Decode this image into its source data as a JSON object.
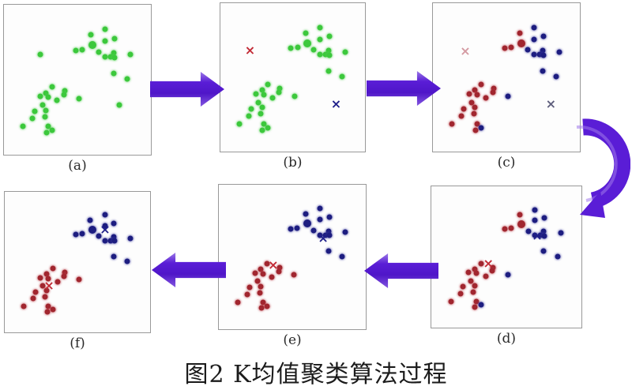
{
  "figure": {
    "caption": "图2 K均值聚类算法过程"
  },
  "colors": {
    "green_dot": "#3cc83c",
    "red_dot": "#a1262f",
    "blue_dot": "#1d1d80",
    "red_x": "#c22a35",
    "blue_x": "#1f1f8a",
    "red_x_faded": "#d49aa2",
    "blue_x_faded": "#5f5f7d",
    "arrow": "#5a1dd6",
    "panel_border": "#999999"
  },
  "halos": {
    "green_dot": "rgba(80,210,80,0.5)",
    "red_dot": "rgba(190,60,70,0.5)",
    "blue_dot": "rgba(60,60,160,0.5)"
  },
  "icons": {
    "centroid_marker": "×",
    "flow_arrow_right": "right-arrow",
    "flow_arrow_left": "left-arrow",
    "flow_arrow_curved": "curved-arrow-down"
  },
  "chart_data": {
    "type": "scatter",
    "points": [
      [
        69.0,
        16.5
      ],
      [
        58.9,
        20.0
      ],
      [
        75.2,
        22.6
      ],
      [
        69.0,
        24.3
      ],
      [
        60.1,
        26.9
      ],
      [
        48.9,
        30.4
      ],
      [
        53.4,
        29.8
      ],
      [
        64.6,
        31.6
      ],
      [
        74.8,
        32.1
      ],
      [
        69.0,
        34.7
      ],
      [
        72.6,
        34.7
      ],
      [
        75.5,
        35.1
      ],
      [
        86.2,
        33.0
      ],
      [
        24.7,
        33.0
      ],
      [
        74.8,
        46.0
      ],
      [
        84.0,
        49.5
      ],
      [
        33.0,
        54.7
      ],
      [
        28.7,
        58.7
      ],
      [
        41.2,
        57.3
      ],
      [
        24.7,
        61.1
      ],
      [
        30.0,
        61.6
      ],
      [
        40.6,
        59.9
      ],
      [
        36.2,
        63.9
      ],
      [
        26.1,
        66.8
      ],
      [
        51.3,
        62.5
      ],
      [
        21.1,
        71.2
      ],
      [
        28.7,
        70.3
      ],
      [
        78.7,
        66.8
      ],
      [
        19.4,
        76.0
      ],
      [
        27.9,
        74.6
      ],
      [
        13.1,
        81.3
      ],
      [
        30.0,
        81.3
      ],
      [
        33.0,
        83.9
      ],
      [
        29.1,
        85.4
      ]
    ],
    "big_points": [
      4
    ],
    "panels": [
      {
        "id": "a",
        "label": "(a)",
        "all": "green_dot",
        "hidden": [],
        "centroids": []
      },
      {
        "id": "b",
        "label": "(b)",
        "all": "green_dot",
        "hidden": [
          13,
          27
        ],
        "centroids": [
          {
            "x": 20.5,
            "y": 32,
            "color": "red_x"
          },
          {
            "x": 80,
            "y": 68,
            "color": "blue_x"
          }
        ]
      },
      {
        "id": "c",
        "label": "(c)",
        "hidden": [
          13,
          27
        ],
        "red": [
          1,
          4,
          5,
          6,
          16,
          17,
          18,
          19,
          20,
          21,
          22,
          23,
          25,
          26,
          28,
          29,
          30,
          31,
          33
        ],
        "blue": [
          0,
          2,
          3,
          7,
          8,
          9,
          10,
          11,
          12,
          14,
          15,
          24,
          32
        ],
        "centroids": [
          {
            "x": 22,
            "y": 32.3,
            "color": "red_x_faded"
          },
          {
            "x": 80.3,
            "y": 67.9,
            "color": "blue_x_faded"
          }
        ]
      },
      {
        "id": "d",
        "label": "(d)",
        "hidden": [
          13,
          27
        ],
        "red": [
          1,
          4,
          5,
          6,
          16,
          17,
          18,
          19,
          20,
          21,
          22,
          23,
          25,
          26,
          28,
          29,
          30,
          31,
          33
        ],
        "blue": [
          0,
          2,
          3,
          7,
          8,
          9,
          10,
          11,
          12,
          14,
          15,
          24,
          32
        ],
        "centroids": [
          {
            "x": 38,
            "y": 54.5,
            "color": "red_x"
          },
          {
            "x": 70.5,
            "y": 35,
            "color": "blue_x"
          }
        ]
      },
      {
        "id": "e",
        "label": "(e)",
        "hidden": [
          13,
          27
        ],
        "red": [
          16,
          17,
          18,
          19,
          20,
          21,
          22,
          23,
          24,
          25,
          26,
          28,
          29,
          30,
          31,
          32,
          33
        ],
        "blue": [
          0,
          1,
          2,
          3,
          4,
          5,
          6,
          7,
          8,
          9,
          10,
          11,
          12,
          14,
          15
        ],
        "centroids": [
          {
            "x": 37,
            "y": 56,
            "color": "red_x"
          },
          {
            "x": 71,
            "y": 37,
            "color": "blue_x"
          }
        ]
      },
      {
        "id": "f",
        "label": "(f)",
        "hidden": [
          13,
          27
        ],
        "red": [
          16,
          17,
          18,
          19,
          20,
          21,
          22,
          23,
          24,
          25,
          26,
          28,
          29,
          30,
          31,
          32,
          33
        ],
        "blue": [
          0,
          1,
          2,
          3,
          4,
          5,
          6,
          7,
          8,
          9,
          10,
          11,
          12,
          14,
          15
        ],
        "centroids": [
          {
            "x": 30.5,
            "y": 67,
            "color": "red_x"
          },
          {
            "x": 69,
            "y": 27,
            "color": "blue_x"
          }
        ]
      }
    ]
  }
}
